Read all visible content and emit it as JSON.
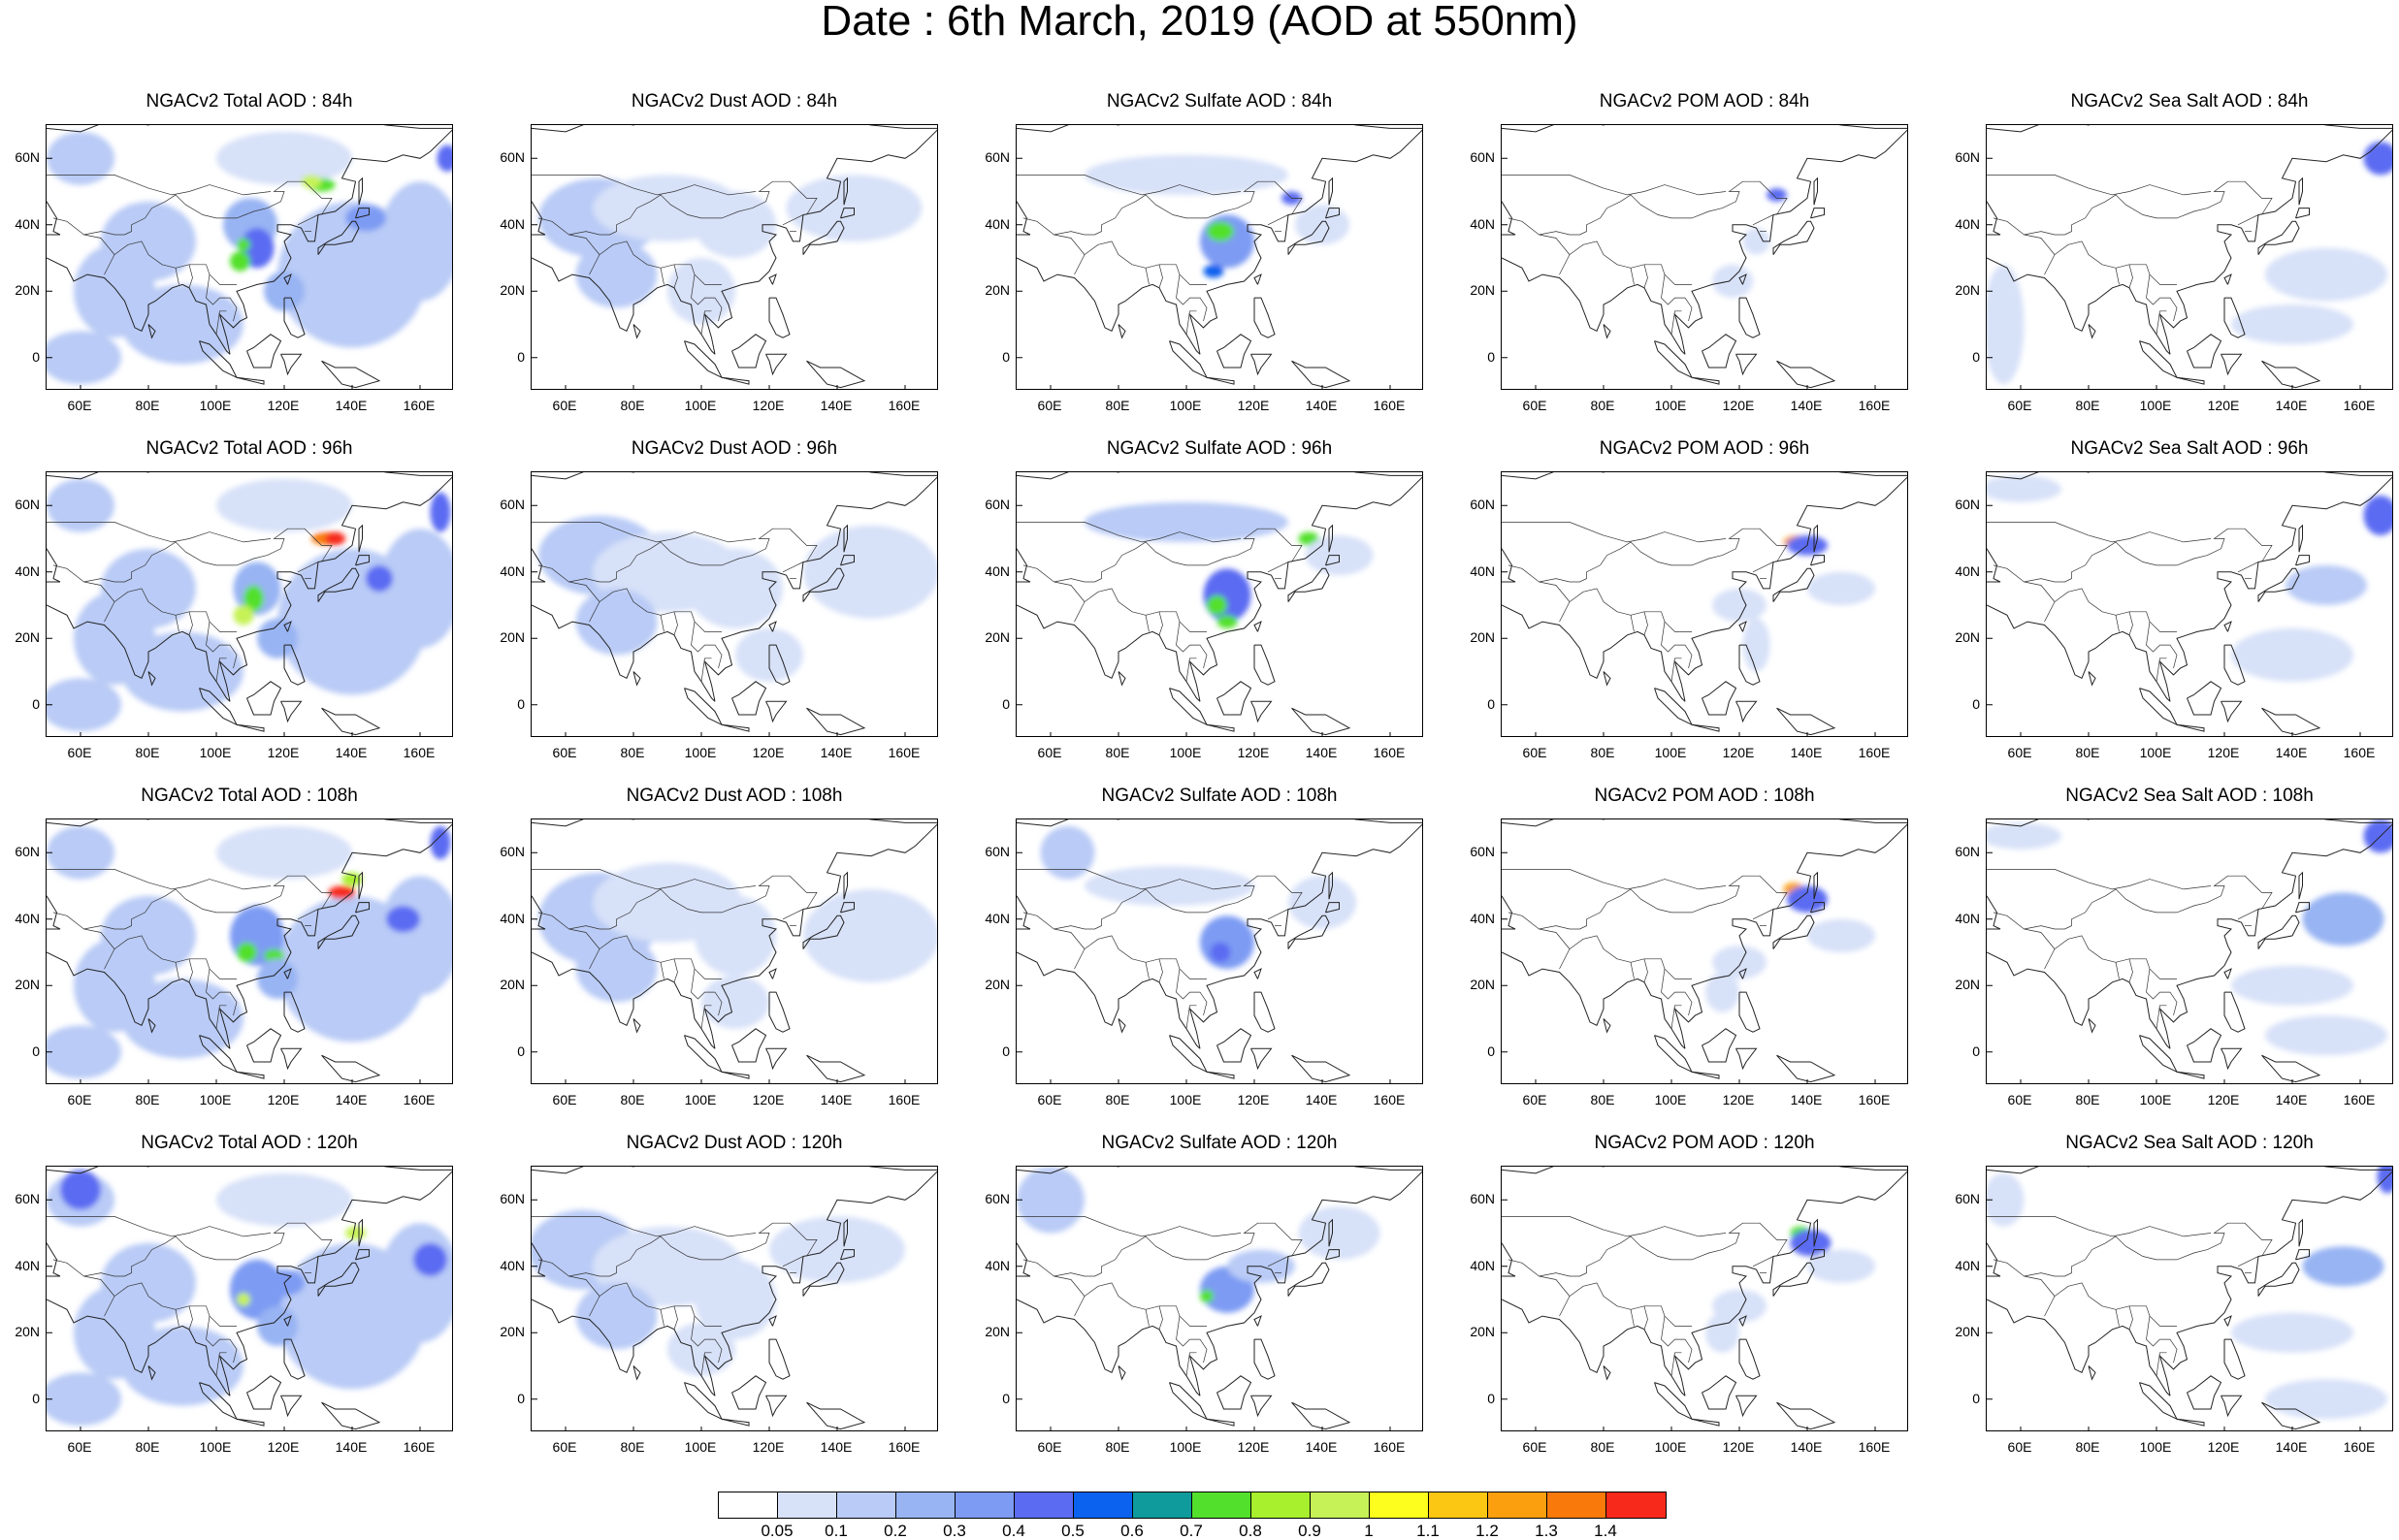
{
  "title": "Date : 6th March, 2019 (AOD at 550nm)",
  "axes": {
    "lat_ticks": [
      "60N",
      "40N",
      "20N",
      "0"
    ],
    "lon_ticks": [
      "60E",
      "80E",
      "100E",
      "120E",
      "140E",
      "160E"
    ],
    "lat_values": [
      60,
      40,
      20,
      0
    ],
    "lon_values": [
      60,
      80,
      100,
      120,
      140,
      160
    ],
    "lon_range": [
      50,
      170
    ],
    "lat_range": [
      -10,
      70
    ]
  },
  "colorbar": {
    "colors": [
      "#ffffff",
      "#d7e1f8",
      "#b9cbf6",
      "#98b4f3",
      "#7d9bf3",
      "#5c6cf2",
      "#0b62ee",
      "#0f9b9b",
      "#53e02c",
      "#a8ef2d",
      "#c6f257",
      "#fdfd1e",
      "#fbc712",
      "#fb9f0e",
      "#f97a0b",
      "#f6291a"
    ],
    "labels": [
      "0.05",
      "0.1",
      "0.2",
      "0.3",
      "0.4",
      "0.5",
      "0.6",
      "0.7",
      "0.8",
      "0.9",
      "1",
      "1.1",
      "1.2",
      "1.3",
      "1.4"
    ]
  },
  "panels": [
    {
      "title": "NGACv2 Total AOD : 84h"
    },
    {
      "title": "NGACv2 Dust AOD : 84h"
    },
    {
      "title": "NGACv2 Sulfate AOD : 84h"
    },
    {
      "title": "NGACv2 POM AOD : 84h"
    },
    {
      "title": "NGACv2 Sea Salt AOD : 84h"
    },
    {
      "title": "NGACv2 Total AOD : 96h"
    },
    {
      "title": "NGACv2 Dust AOD : 96h"
    },
    {
      "title": "NGACv2 Sulfate AOD : 96h"
    },
    {
      "title": "NGACv2 POM AOD : 96h"
    },
    {
      "title": "NGACv2 Sea Salt AOD : 96h"
    },
    {
      "title": "NGACv2 Total AOD : 108h"
    },
    {
      "title": "NGACv2 Dust AOD : 108h"
    },
    {
      "title": "NGACv2 Sulfate AOD : 108h"
    },
    {
      "title": "NGACv2 POM AOD : 108h"
    },
    {
      "title": "NGACv2 Sea Salt AOD : 108h"
    },
    {
      "title": "NGACv2 Total AOD : 120h"
    },
    {
      "title": "NGACv2 Dust AOD : 120h"
    },
    {
      "title": "NGACv2 Sulfate AOD : 120h"
    },
    {
      "title": "NGACv2 POM AOD : 120h"
    },
    {
      "title": "NGACv2 Sea Salt  AOD : 120h"
    }
  ]
}
